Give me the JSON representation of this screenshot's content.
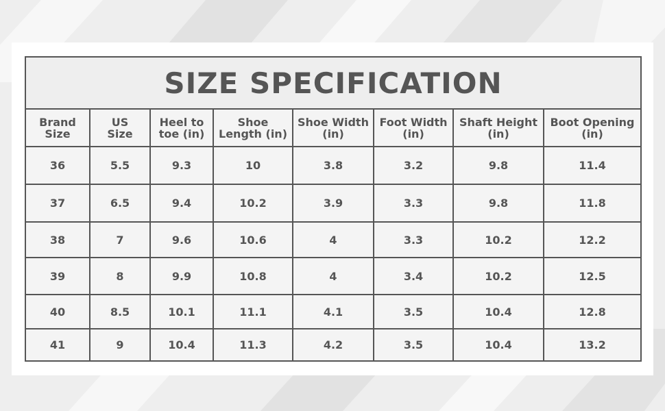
{
  "table": {
    "title": "SIZE SPECIFICATION",
    "headers": [
      [
        "Brand",
        "Size"
      ],
      [
        "US",
        "Size"
      ],
      [
        "Heel to",
        "toe (in)"
      ],
      [
        "Shoe",
        "Length (in)"
      ],
      [
        "Shoe Width",
        "(in)"
      ],
      [
        "Foot Width",
        "(in)"
      ],
      [
        "Shaft Height",
        "(in)"
      ],
      [
        "Boot Opening",
        "(in)"
      ]
    ],
    "rows": [
      [
        "36",
        "5.5",
        "9.3",
        "10",
        "3.8",
        "3.2",
        "9.8",
        "11.4"
      ],
      [
        "37",
        "6.5",
        "9.4",
        "10.2",
        "3.9",
        "3.3",
        "9.8",
        "11.8"
      ],
      [
        "38",
        "7",
        "9.6",
        "10.6",
        "4",
        "3.3",
        "10.2",
        "12.2"
      ],
      [
        "39",
        "8",
        "9.9",
        "10.8",
        "4",
        "3.4",
        "10.2",
        "12.5"
      ],
      [
        "40",
        "8.5",
        "10.1",
        "11.1",
        "4.1",
        "3.5",
        "10.4",
        "12.8"
      ],
      [
        "41",
        "9",
        "10.4",
        "11.3",
        "4.2",
        "3.5",
        "10.4",
        "13.2"
      ]
    ]
  }
}
